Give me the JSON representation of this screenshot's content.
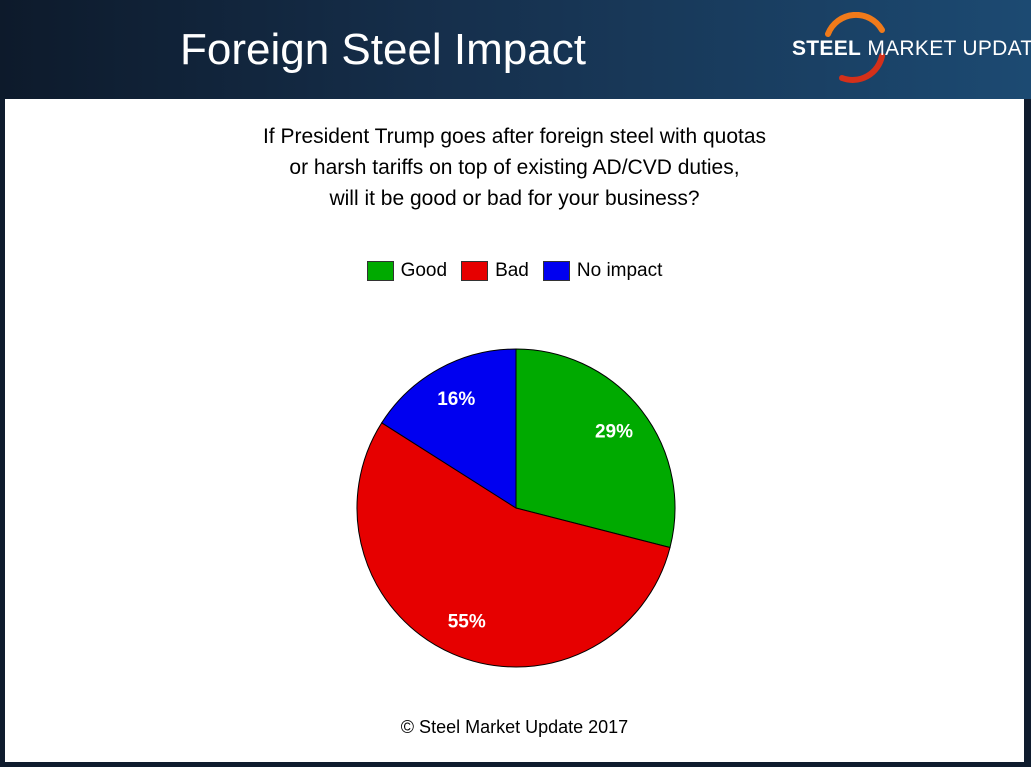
{
  "header": {
    "title": "Foreign Steel Impact",
    "logo_strong": "STEEL",
    "logo_rest": "MARKET UPDATE"
  },
  "footer": {
    "copyright": "© Steel Market Update 2017"
  },
  "colors": {
    "good": "#00aa00",
    "bad": "#e60000",
    "no_impact": "#0000f0",
    "accent": "#f07a1a"
  },
  "chart_data": {
    "type": "pie",
    "title_lines": [
      "If President Trump goes after foreign steel with quotas",
      "or harsh tariffs on top of existing AD/CVD duties,",
      "will it be good or bad for your business?"
    ],
    "legend_placement": "top",
    "slices": [
      {
        "label": "Good",
        "value": 29,
        "display": "29%",
        "color": "#00aa00"
      },
      {
        "label": "Bad",
        "value": 55,
        "display": "55%",
        "color": "#e60000"
      },
      {
        "label": "No impact",
        "value": 16,
        "display": "16%",
        "color": "#0000f0"
      }
    ]
  }
}
